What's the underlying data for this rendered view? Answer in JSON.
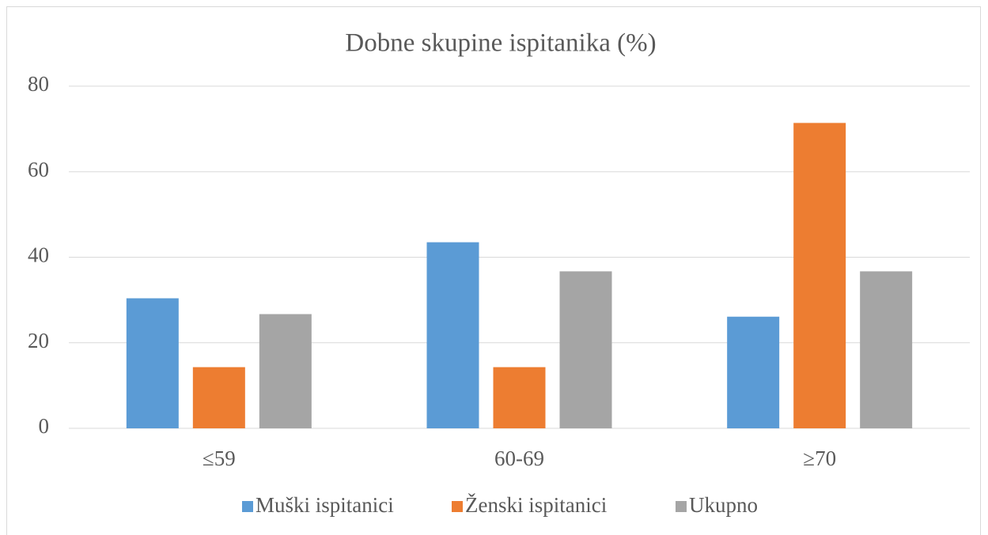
{
  "chart_data": {
    "type": "bar",
    "title": "Dobne skupine ispitanika (%)",
    "categories": [
      "≤59",
      "60-69",
      "≥70"
    ],
    "series": [
      {
        "name": "Muški ispitanici",
        "color": "#5b9bd5",
        "values": [
          30.4,
          43.5,
          26.1
        ]
      },
      {
        "name": "Ženski ispitanici",
        "color": "#ed7d31",
        "values": [
          14.3,
          14.3,
          71.4
        ]
      },
      {
        "name": "Ukupno",
        "color": "#a5a5a5",
        "values": [
          26.7,
          36.7,
          36.7
        ]
      }
    ],
    "ylim": [
      0,
      80
    ],
    "yticks": [
      0,
      20,
      40,
      60,
      80
    ],
    "grid": true,
    "legend": "bottom"
  }
}
